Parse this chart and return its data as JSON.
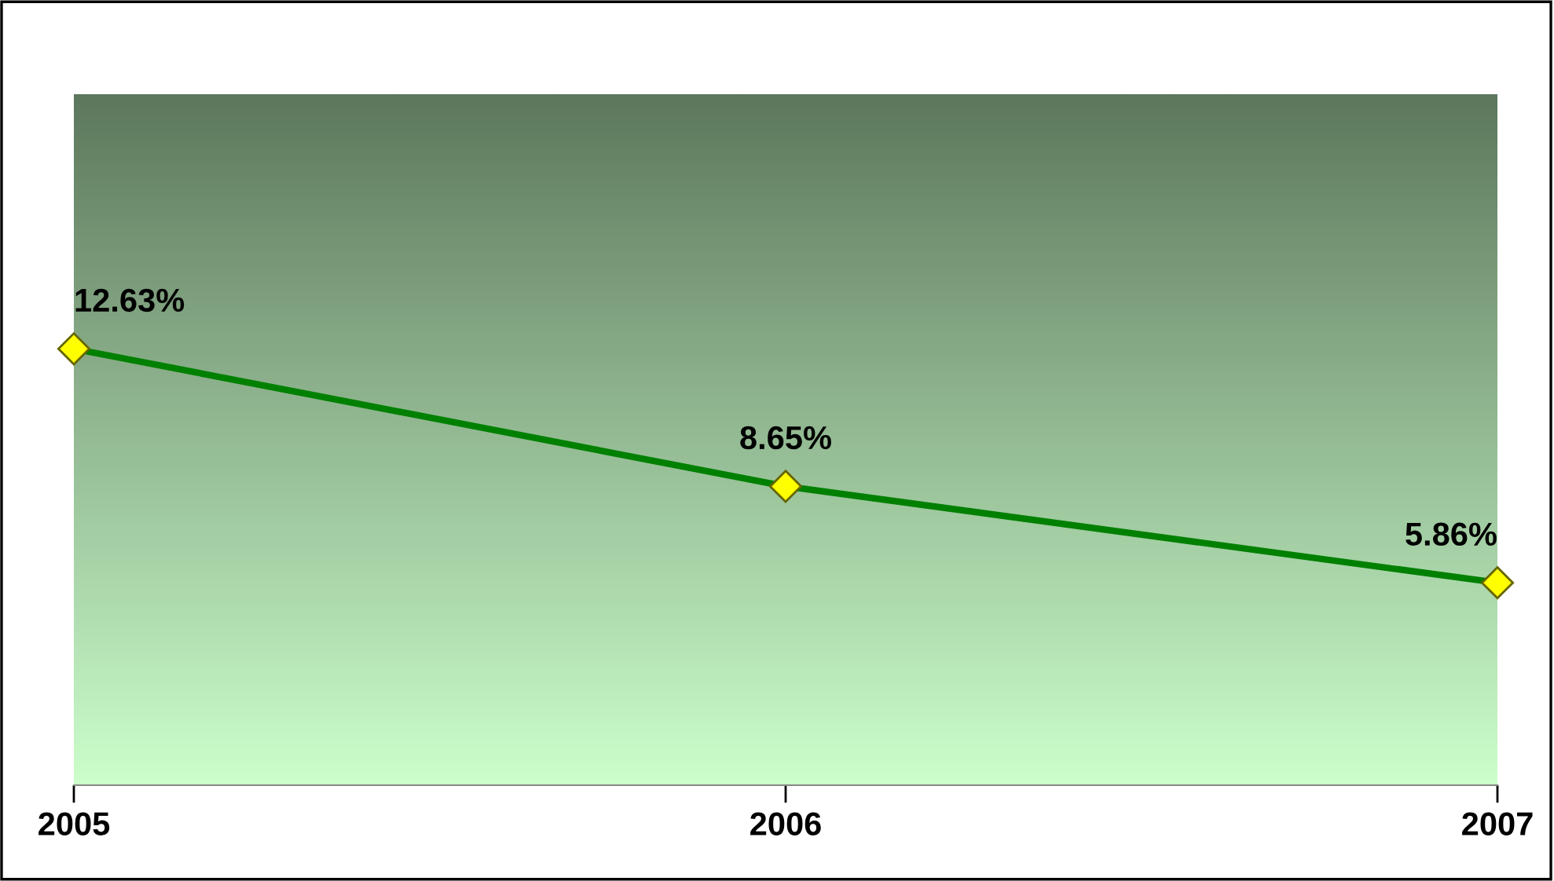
{
  "chart_data": {
    "type": "line",
    "categories": [
      "2005",
      "2006",
      "2007"
    ],
    "values": [
      12.63,
      8.65,
      5.86
    ],
    "value_labels": [
      "12.63%",
      "8.65%",
      "5.86%"
    ],
    "color": "#008000",
    "marker": "diamond",
    "line_style": "solid",
    "ylim": [
      0,
      20
    ],
    "tick_labels": "x",
    "grid": false,
    "legend": false
  }
}
